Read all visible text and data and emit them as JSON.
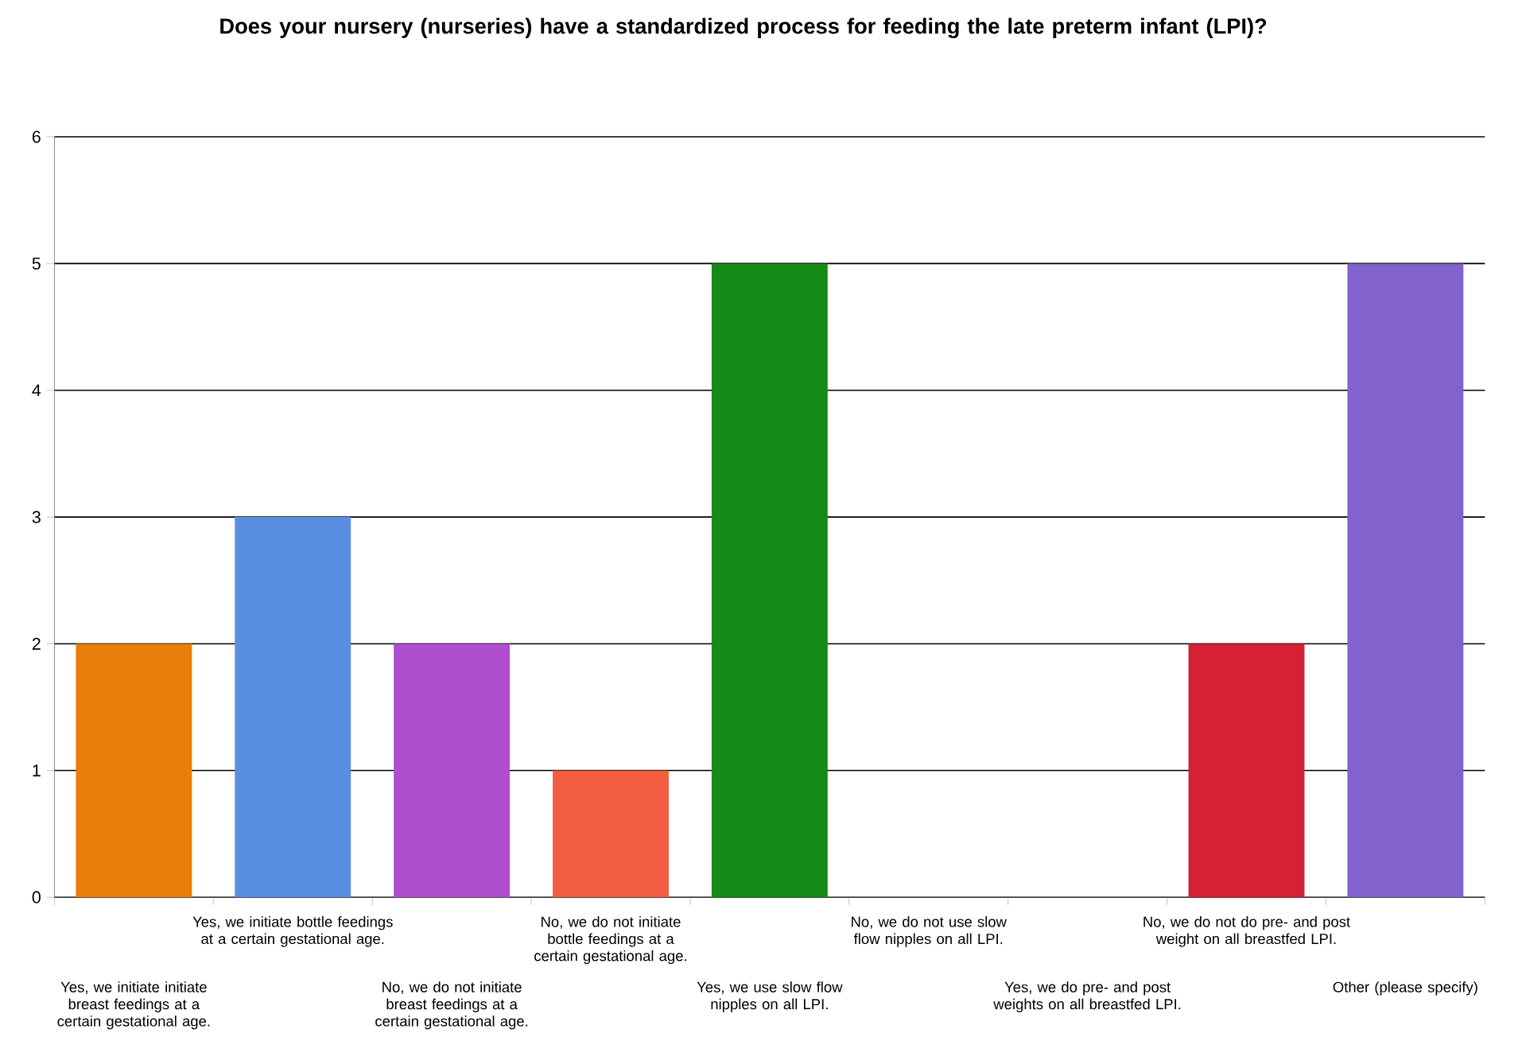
{
  "chart_data": {
    "type": "bar",
    "title": "Does your nursery (nurseries) have a standardized process for feeding the late preterm infant (LPI)?",
    "categories": [
      "Yes, we initiate initiate breast feedings at a certain gestational age.",
      "Yes, we initiate bottle feedings at a certain gestational age.",
      "No, we do not initiate breast feedings at a certain gestational age.",
      "No, we do not initiate bottle feedings at a certain gestational age.",
      "Yes, we use slow flow nipples on all LPI.",
      "No, we do not use slow flow nipples on all LPI.",
      "Yes, we do pre- and post weights on all breastfed LPI.",
      "No, we do not do pre- and post weight on all breastfed LPI.",
      "Other (please specify)"
    ],
    "values": [
      2,
      3,
      2,
      1,
      5,
      0,
      0,
      2,
      5
    ],
    "colors": [
      "#e97f08",
      "#5a8ee2",
      "#b04ed0",
      "#f25c40",
      "#168a16",
      "#c8b400",
      "#20a0a0",
      "#d42234",
      "#8262cc"
    ],
    "ylim": [
      0,
      6
    ],
    "yticks": [
      0,
      1,
      2,
      3,
      4,
      5,
      6
    ],
    "grid": "y"
  }
}
